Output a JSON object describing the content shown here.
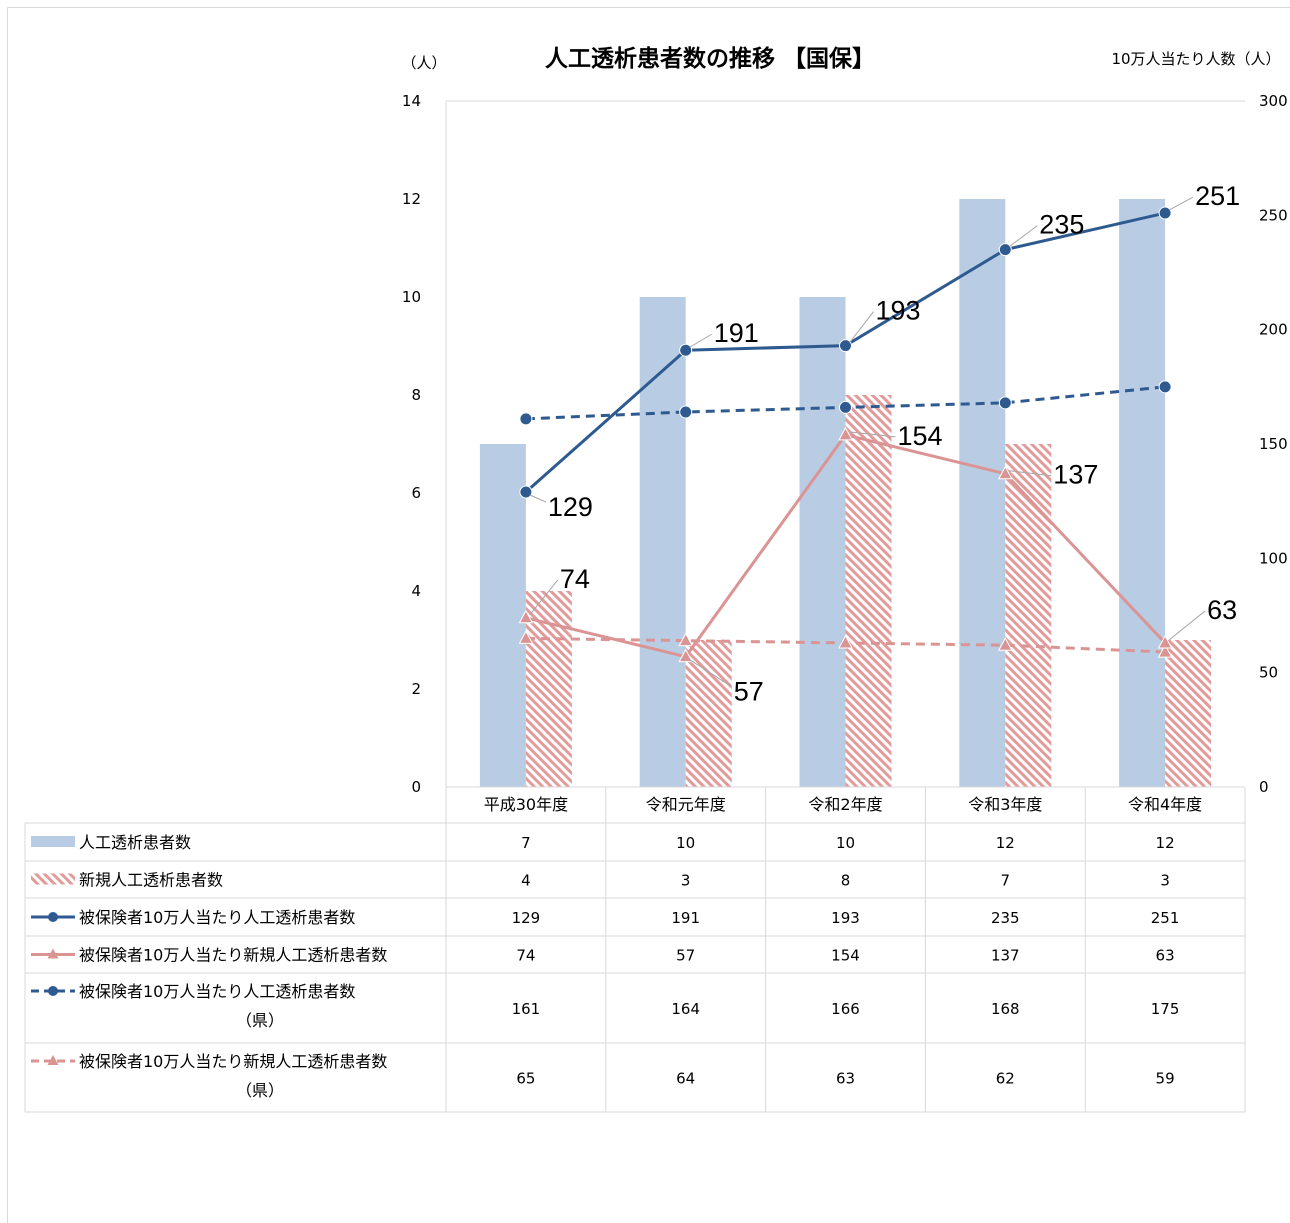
{
  "chart_data": {
    "type": "bar",
    "title": "人工透析患者数の推移 【国保】",
    "y_left_label": "（人）",
    "y_right_label": "10万人当たり人数（人）",
    "y_left_range": [
      0,
      14
    ],
    "y_left_ticks": [
      "0",
      "2",
      "4",
      "6",
      "8",
      "10",
      "12",
      "14"
    ],
    "y_right_range": [
      0,
      300
    ],
    "y_right_ticks": [
      "0",
      "50",
      "100",
      "150",
      "200",
      "250",
      "300"
    ],
    "categories": [
      "平成30年度",
      "令和元年度",
      "令和2年度",
      "令和3年度",
      "令和4年度"
    ],
    "grid": false,
    "legend_placement": "data-table",
    "series": [
      {
        "name": "人工透析患者数",
        "kind": "bar",
        "axis": "left",
        "color": "#b8cce4",
        "values": [
          7,
          10,
          10,
          12,
          12
        ]
      },
      {
        "name": "新規人工透析患者数",
        "kind": "bar-hatched",
        "axis": "left",
        "color": "#e6a5a5",
        "values": [
          4,
          3,
          8,
          7,
          3
        ]
      },
      {
        "name": "被保険者10万人当たり人工透析患者数",
        "kind": "line",
        "axis": "right",
        "color": "#2e5a90",
        "marker": "circle",
        "dashed": false,
        "labels_shown": true,
        "values": [
          129,
          191,
          193,
          235,
          251
        ]
      },
      {
        "name": "被保険者10万人当たり新規人工透析患者数",
        "kind": "line",
        "axis": "right",
        "color": "#db9494",
        "marker": "triangle",
        "dashed": false,
        "labels_shown": true,
        "values": [
          74,
          57,
          154,
          137,
          63
        ]
      },
      {
        "name": "被保険者10万人当たり人工透析患者数",
        "name_suffix": "（県）",
        "kind": "line",
        "axis": "right",
        "color": "#2e5a90",
        "marker": "circle",
        "dashed": true,
        "labels_shown": false,
        "values": [
          161,
          164,
          166,
          168,
          175
        ]
      },
      {
        "name": "被保険者10万人当たり新規人工透析患者数",
        "name_suffix": "（県）",
        "kind": "line",
        "axis": "right",
        "color": "#db9494",
        "marker": "triangle",
        "dashed": true,
        "labels_shown": false,
        "values": [
          65,
          64,
          63,
          62,
          59
        ]
      }
    ]
  }
}
